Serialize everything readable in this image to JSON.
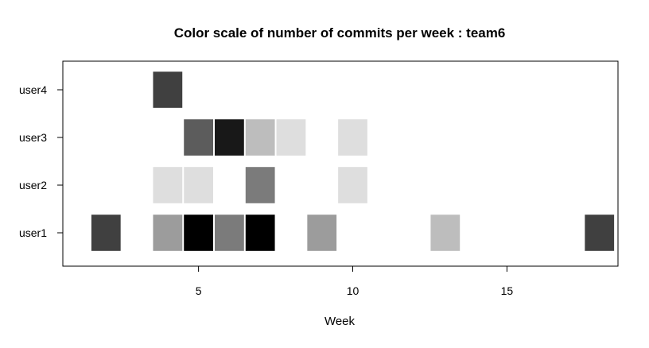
{
  "chart_data": {
    "type": "heatmap",
    "title": "Color scale of number of commits per week :  team6",
    "xlabel": "Week",
    "ylabel": "",
    "xlim": [
      0.6,
      18.6
    ],
    "ylim": [
      0.3,
      4.6
    ],
    "xticks": [
      5,
      10,
      15
    ],
    "categories": [
      "user1",
      "user2",
      "user3",
      "user4"
    ],
    "grid": false,
    "legend": "none",
    "scale": "grayscale (darker = more commits)",
    "cells": [
      {
        "user": "user1",
        "week": 2,
        "shade": "#404040"
      },
      {
        "user": "user1",
        "week": 4,
        "shade": "#9c9c9c"
      },
      {
        "user": "user1",
        "week": 5,
        "shade": "#000000"
      },
      {
        "user": "user1",
        "week": 6,
        "shade": "#7b7b7b"
      },
      {
        "user": "user1",
        "week": 7,
        "shade": "#000000"
      },
      {
        "user": "user1",
        "week": 9,
        "shade": "#9c9c9c"
      },
      {
        "user": "user1",
        "week": 13,
        "shade": "#bdbdbd"
      },
      {
        "user": "user1",
        "week": 18,
        "shade": "#404040"
      },
      {
        "user": "user2",
        "week": 4,
        "shade": "#dedede"
      },
      {
        "user": "user2",
        "week": 5,
        "shade": "#dedede"
      },
      {
        "user": "user2",
        "week": 7,
        "shade": "#7b7b7b"
      },
      {
        "user": "user2",
        "week": 10,
        "shade": "#dedede"
      },
      {
        "user": "user3",
        "week": 5,
        "shade": "#5c5c5c"
      },
      {
        "user": "user3",
        "week": 6,
        "shade": "#181818"
      },
      {
        "user": "user3",
        "week": 7,
        "shade": "#bdbdbd"
      },
      {
        "user": "user3",
        "week": 8,
        "shade": "#dedede"
      },
      {
        "user": "user3",
        "week": 10,
        "shade": "#dedede"
      },
      {
        "user": "user4",
        "week": 4,
        "shade": "#404040"
      }
    ]
  }
}
